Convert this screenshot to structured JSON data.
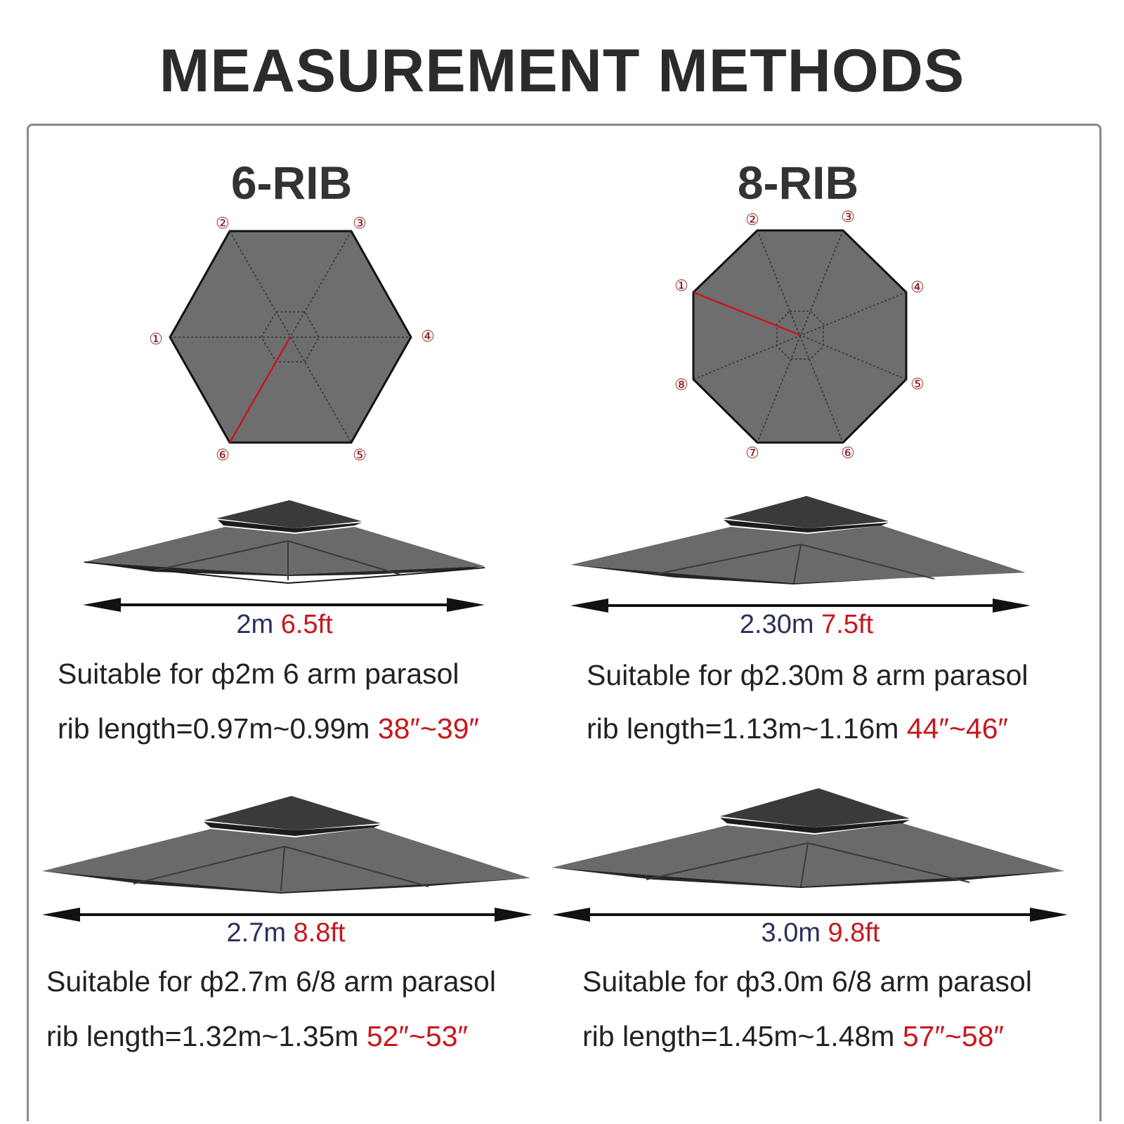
{
  "title": "MEASUREMENT METHODS",
  "colors": {
    "canopy": "#6e6e6e",
    "canopy_dark": "#262626",
    "accent_red": "#c8161d",
    "dim_blue": "#2a2f5c"
  },
  "rib6": {
    "heading": "6-RIB",
    "markers": [
      "①",
      "②",
      "③",
      "④",
      "⑤",
      "⑥"
    ]
  },
  "rib8": {
    "heading": "8-RIB",
    "markers": [
      "①",
      "②",
      "③",
      "④",
      "⑤",
      "⑥",
      "⑦",
      "⑧"
    ]
  },
  "sizes": [
    {
      "metric": "2m",
      "imperial": "6.5ft",
      "suitable": "Suitable for ф2m 6 arm parasol",
      "rib_prefix": "rib length=0.97m~0.99m",
      "rib_inches": "38″~39″"
    },
    {
      "metric": "2.30m",
      "imperial": "7.5ft",
      "suitable": "Suitable for ф2.30m 8 arm parasol",
      "rib_prefix": "rib length=1.13m~1.16m",
      "rib_inches": "44″~46″"
    },
    {
      "metric": "2.7m",
      "imperial": "8.8ft",
      "suitable": "Suitable for ф2.7m 6/8 arm parasol",
      "rib_prefix": "rib length=1.32m~1.35m",
      "rib_inches": "52″~53″"
    },
    {
      "metric": "3.0m",
      "imperial": "9.8ft",
      "suitable": "Suitable for ф3.0m 6/8 arm parasol",
      "rib_prefix": "rib length=1.45m~1.48m",
      "rib_inches": "57″~58″"
    }
  ]
}
